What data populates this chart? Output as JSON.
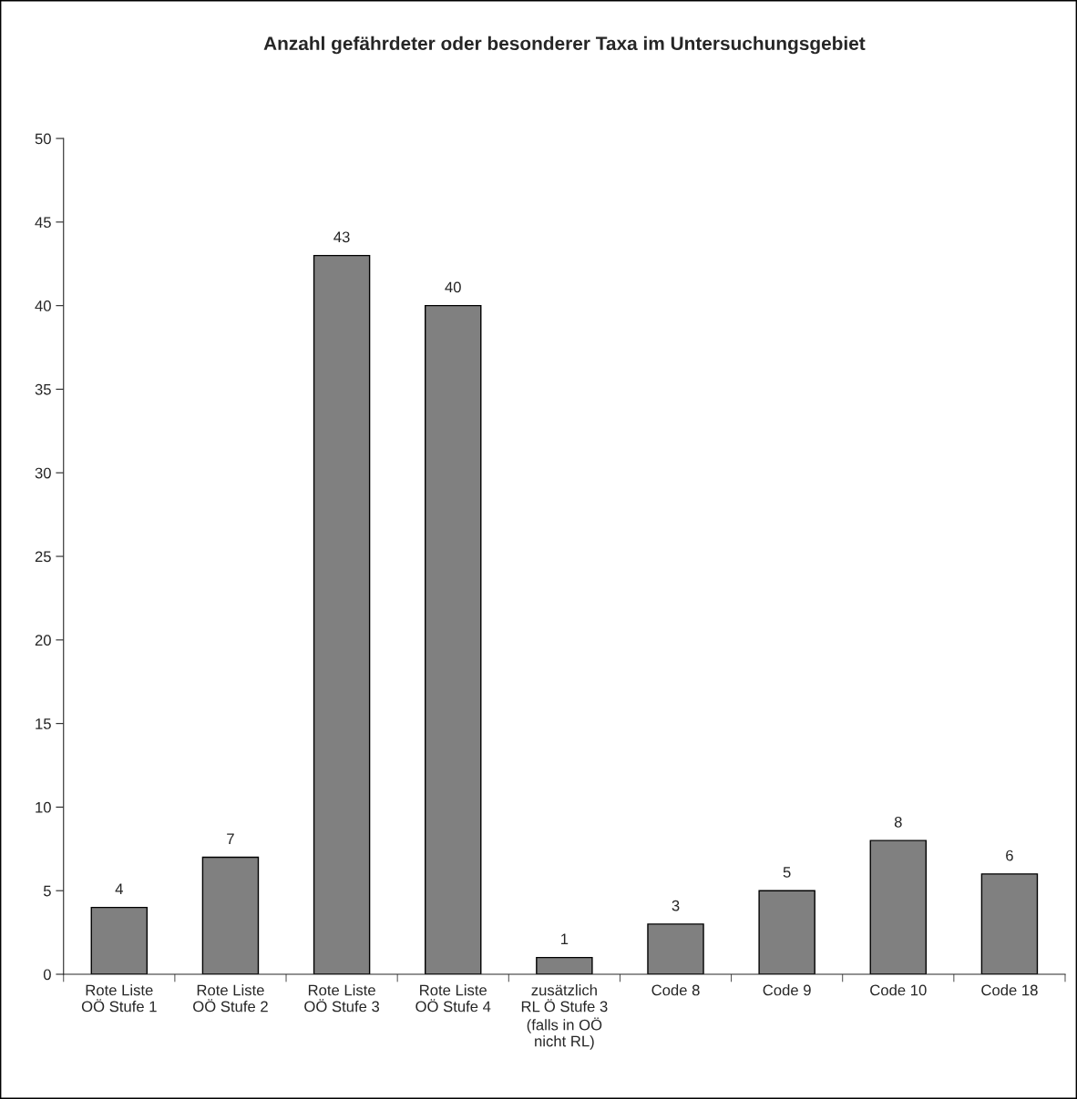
{
  "chart_data": {
    "type": "bar",
    "title": "Anzahl gefährdeter oder besonderer Taxa im Untersuchungsgebiet",
    "categories": [
      "Rote Liste\nOÖ Stufe 1",
      "Rote Liste\nOÖ Stufe 2",
      "Rote Liste\nOÖ Stufe 3",
      "Rote Liste\nOÖ Stufe 4",
      "zusätzlich\nRL Ö Stufe 3\n(falls in OÖ\nnicht RL)",
      "Code 8",
      "Code 9",
      "Code 10",
      "Code 18"
    ],
    "values": [
      4,
      7,
      43,
      40,
      1,
      3,
      5,
      8,
      6
    ],
    "color": "#808080",
    "ylim": [
      0,
      50
    ],
    "yticks": [
      0,
      5,
      10,
      15,
      20,
      25,
      30,
      35,
      40,
      45,
      50
    ],
    "grid": false,
    "data_labels": true
  }
}
